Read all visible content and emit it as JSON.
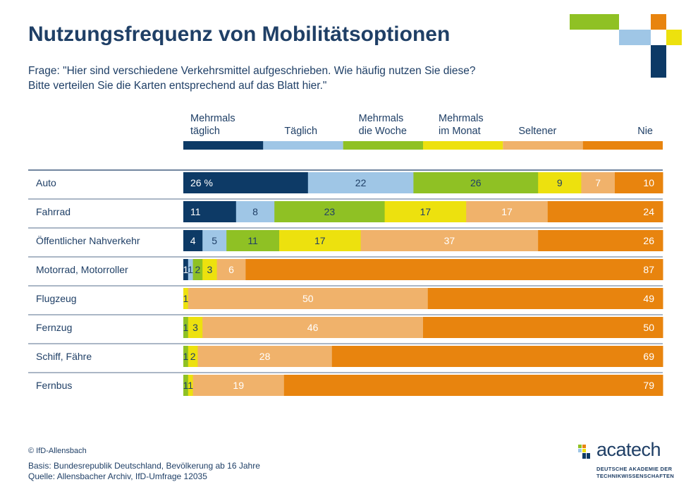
{
  "title": "Nutzungsfrequenz von Mobilitätsoptionen",
  "question_line1": "Frage: \"Hier sind verschiedene Verkehrsmittel aufgeschrieben. Wie häufig nutzen Sie diese?",
  "question_line2": "Bitte verteilen Sie die Karten entsprechend auf das Blatt hier.\"",
  "copyright": "© IfD-Allensbach",
  "basis": "Basis: Bundesrepublik Deutschland, Bevölkerung ab 16 Jahre",
  "quelle": "Quelle: Allensbacher Archiv, IfD-Umfrage 12035",
  "brand": {
    "name": "acatech",
    "sub_line1": "DEUTSCHE AKADEMIE DER",
    "sub_line2": "TECHNIKWISSENSCHAFTEN"
  },
  "colors": {
    "text": "#1f3f66",
    "dark_blue": "#0d3a66",
    "light_blue": "#9fc6e6",
    "green": "#8fc124",
    "yellow": "#ede10e",
    "peach": "#f0b26b",
    "orange": "#e8840e",
    "rule": "#1f3f66"
  },
  "chart_data": {
    "type": "bar",
    "orientation": "horizontal",
    "stacked": true,
    "percent_axis": [
      0,
      100
    ],
    "first_label_suffix": " %",
    "categories": [
      "Auto",
      "Fahrrad",
      "Öffentlicher Nahverkehr",
      "Motorrad, Motorroller",
      "Flugzeug",
      "Fernzug",
      "Schiff, Fähre",
      "Fernbus"
    ],
    "series": [
      {
        "name": "Mehrmals täglich",
        "legend_lines": [
          "Mehrmals",
          "täglich"
        ],
        "color": "#0d3a66",
        "label_color": "#ffffff",
        "values": [
          26,
          11,
          4,
          1,
          0,
          0,
          0,
          0
        ]
      },
      {
        "name": "Täglich",
        "legend_lines": [
          "Täglich"
        ],
        "color": "#9fc6e6",
        "label_color": "#1f3f66",
        "values": [
          22,
          8,
          5,
          1,
          0,
          0,
          0,
          0
        ]
      },
      {
        "name": "Mehrmals die Woche",
        "legend_lines": [
          "Mehrmals",
          "die Woche"
        ],
        "color": "#8fc124",
        "label_color": "#1f3f66",
        "values": [
          26,
          23,
          11,
          2,
          0,
          1,
          1,
          1
        ]
      },
      {
        "name": "Mehrmals im Monat",
        "legend_lines": [
          "Mehrmals",
          "im Monat"
        ],
        "color": "#ede10e",
        "label_color": "#1f3f66",
        "values": [
          9,
          17,
          17,
          3,
          1,
          3,
          2,
          1
        ]
      },
      {
        "name": "Seltener",
        "legend_lines": [
          "Seltener"
        ],
        "color": "#f0b26b",
        "label_color": "#ffffff",
        "values": [
          7,
          17,
          37,
          6,
          50,
          46,
          28,
          19
        ]
      },
      {
        "name": "Nie",
        "legend_lines": [
          "Nie"
        ],
        "color": "#e8840e",
        "label_color": "#ffffff",
        "values": [
          10,
          24,
          26,
          87,
          49,
          50,
          69,
          79
        ]
      }
    ]
  }
}
